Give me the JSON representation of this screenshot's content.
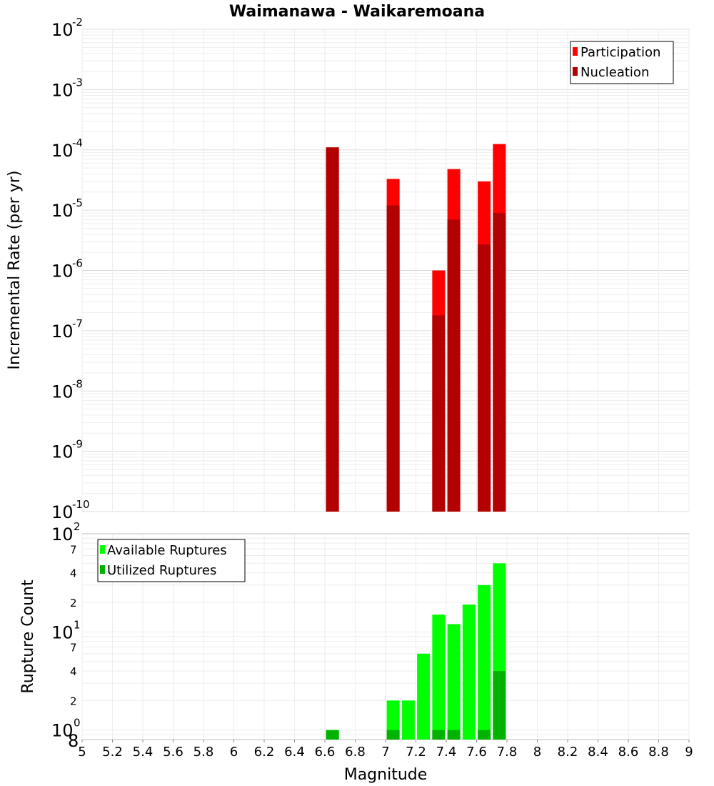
{
  "chart_data": [
    {
      "type": "bar",
      "title": "Waimanawa - Waikaremoana",
      "ylabel": "Incremental Rate (per yr)",
      "xlabel": "",
      "yscale": "log",
      "ylim": [
        1e-10,
        0.01
      ],
      "xlim": [
        5,
        9
      ],
      "grid": true,
      "legend_position": "top-right",
      "series": [
        {
          "name": "Participation",
          "color": "#ff0000",
          "x": [
            6.65,
            7.05,
            7.35,
            7.45,
            7.65,
            7.75
          ],
          "values": [
            0.00011,
            3.3e-05,
            1e-06,
            4.8e-05,
            3e-05,
            0.000125
          ]
        },
        {
          "name": "Nucleation",
          "color": "#b30000",
          "x": [
            6.65,
            7.05,
            7.35,
            7.45,
            7.65,
            7.75
          ],
          "values": [
            0.00011,
            1.2e-05,
            1.8e-07,
            7e-06,
            2.7e-06,
            9e-06
          ]
        }
      ]
    },
    {
      "type": "bar",
      "title": "",
      "ylabel": "Rupture Count",
      "xlabel": "Magnitude",
      "yscale": "log",
      "ylim": [
        0.8,
        100
      ],
      "xlim": [
        5,
        9
      ],
      "grid": true,
      "legend_position": "top-left",
      "series": [
        {
          "name": "Available Ruptures",
          "color": "#00ff00",
          "x": [
            6.65,
            7.05,
            7.15,
            7.25,
            7.35,
            7.45,
            7.55,
            7.65,
            7.75
          ],
          "values": [
            1,
            2,
            2,
            6,
            15,
            12,
            19,
            30,
            50
          ]
        },
        {
          "name": "Utilized Ruptures",
          "color": "#00b300",
          "x": [
            6.65,
            7.05,
            7.15,
            7.25,
            7.35,
            7.45,
            7.55,
            7.65,
            7.75
          ],
          "values": [
            1,
            1,
            0,
            0,
            1,
            1,
            0,
            1,
            4
          ]
        }
      ]
    }
  ],
  "labels": {
    "title": "Waimanawa - Waikaremoana",
    "top_ylabel": "Incremental Rate (per yr)",
    "bottom_ylabel": "Rupture Count",
    "xlabel": "Magnitude",
    "top_legend": [
      "Participation",
      "Nucleation"
    ],
    "bottom_legend": [
      "Available Ruptures",
      "Utilized Ruptures"
    ],
    "x_ticks": [
      "5",
      "5.2",
      "5.4",
      "5.6",
      "5.8",
      "6",
      "6.2",
      "6.4",
      "6.6",
      "6.8",
      "7",
      "7.2",
      "7.4",
      "7.6",
      "7.8",
      "8",
      "8.2",
      "8.4",
      "8.6",
      "8.8",
      "9"
    ],
    "top_y_ticks": [
      {
        "base": "10",
        "exp": "-2"
      },
      {
        "base": "10",
        "exp": "-3"
      },
      {
        "base": "10",
        "exp": "-4"
      },
      {
        "base": "10",
        "exp": "-5"
      },
      {
        "base": "10",
        "exp": "-6"
      },
      {
        "base": "10",
        "exp": "-7"
      },
      {
        "base": "10",
        "exp": "-8"
      },
      {
        "base": "10",
        "exp": "-9"
      },
      {
        "base": "10",
        "exp": "-10"
      }
    ],
    "bottom_y_major": [
      {
        "base": "10",
        "exp": "2"
      },
      {
        "base": "10",
        "exp": "1"
      },
      {
        "base": "10",
        "exp": "0"
      }
    ],
    "bottom_y_minor": [
      "7",
      "4",
      "2",
      "7",
      "4",
      "2",
      "8"
    ]
  }
}
